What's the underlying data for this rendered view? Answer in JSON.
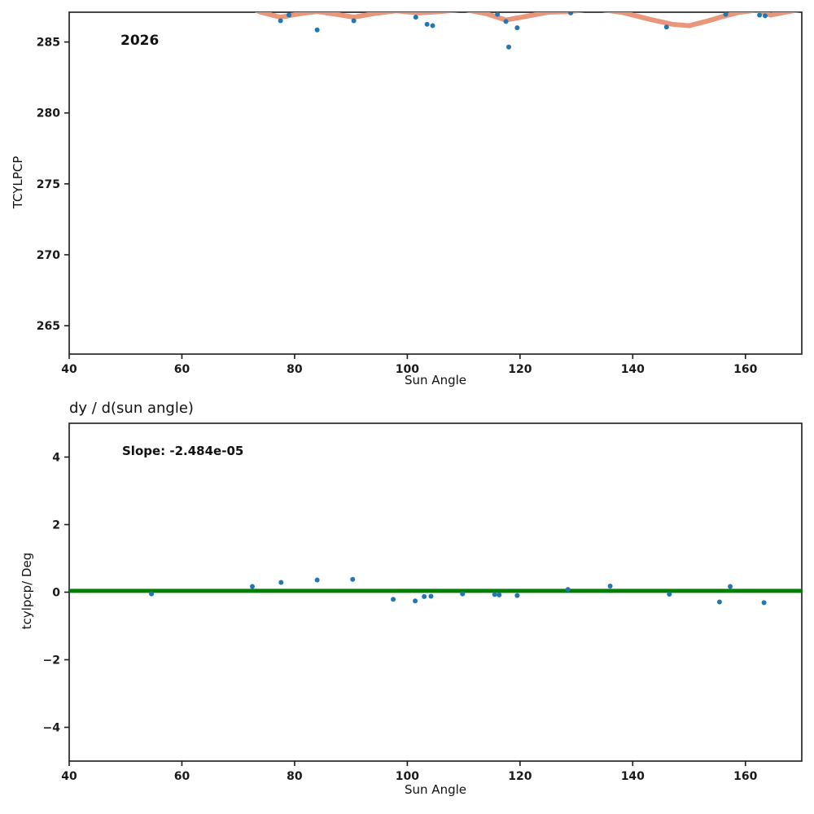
{
  "chart_data": [
    {
      "type": "scatter",
      "name": "tcylpcp-vs-sun-angle",
      "annotation": "2026",
      "xlabel": "Sun Angle",
      "ylabel": "TCYLPCP",
      "xlim": [
        40,
        170
      ],
      "ylim": [
        263.0,
        287.1
      ],
      "xticks": [
        40,
        60,
        80,
        100,
        120,
        140,
        160
      ],
      "yticks": [
        265,
        270,
        275,
        280,
        285
      ],
      "grid": false,
      "legend": "none",
      "series": [
        {
          "name": "fit-line",
          "type": "line",
          "color": "#e9967a",
          "width": 6,
          "x": [
            71,
            74,
            77.5,
            81,
            84,
            87.5,
            90.5,
            94,
            98,
            102,
            106,
            110,
            114,
            117.5,
            121,
            125,
            129,
            133,
            138,
            143,
            147,
            150,
            153,
            156,
            159,
            162,
            164.5,
            167,
            170
          ],
          "y": [
            287.6,
            287.1,
            286.75,
            287.0,
            287.15,
            286.95,
            286.75,
            287.0,
            287.2,
            287.05,
            287.15,
            287.3,
            287.0,
            286.55,
            286.8,
            287.1,
            287.15,
            287.35,
            287.1,
            286.6,
            286.25,
            286.15,
            286.45,
            286.8,
            287.1,
            287.25,
            286.9,
            287.1,
            287.3
          ]
        },
        {
          "name": "tcylpcp-points",
          "type": "scatter",
          "color": "#1f77b4",
          "r": 3,
          "x": [
            77.5,
            79,
            84,
            90.5,
            101.5,
            103.5,
            104.5,
            116,
            117.5,
            118,
            119.5,
            129,
            146,
            156.5,
            162.5,
            163.5
          ],
          "y": [
            286.5,
            286.9,
            285.85,
            286.5,
            286.75,
            286.25,
            286.15,
            286.95,
            286.45,
            284.65,
            286.0,
            287.05,
            286.05,
            286.95,
            286.9,
            286.85
          ]
        }
      ]
    },
    {
      "type": "scatter",
      "name": "derivative-vs-sun-angle",
      "title": "dy / d(sun angle)",
      "annotation": "Slope: -2.484e-05",
      "xlabel": "Sun Angle",
      "ylabel": "tcylpcp/ Deg",
      "xlim": [
        40,
        170
      ],
      "ylim": [
        -5,
        5
      ],
      "xticks": [
        40,
        60,
        80,
        100,
        120,
        140,
        160
      ],
      "yticks": [
        -4,
        -2,
        0,
        2,
        4
      ],
      "grid": false,
      "legend": "none",
      "series": [
        {
          "name": "zero-slope-fit-line",
          "type": "line",
          "color": "#008000",
          "width": 5,
          "x": [
            40,
            170
          ],
          "y": [
            0.04,
            0.04
          ]
        },
        {
          "name": "derivative-points",
          "type": "scatter",
          "color": "#1f77b4",
          "r": 3,
          "x": [
            54.6,
            72.5,
            77.6,
            84,
            90.3,
            97.5,
            101.4,
            103,
            104.2,
            109.8,
            115.5,
            116.3,
            119.5,
            128.5,
            136,
            146.5,
            155.4,
            157.3,
            163.3
          ],
          "y": [
            -0.05,
            0.17,
            0.29,
            0.36,
            0.38,
            -0.21,
            -0.26,
            -0.13,
            -0.12,
            -0.05,
            -0.07,
            -0.08,
            -0.1,
            0.08,
            0.18,
            -0.06,
            -0.29,
            0.17,
            -0.31
          ]
        }
      ]
    }
  ]
}
